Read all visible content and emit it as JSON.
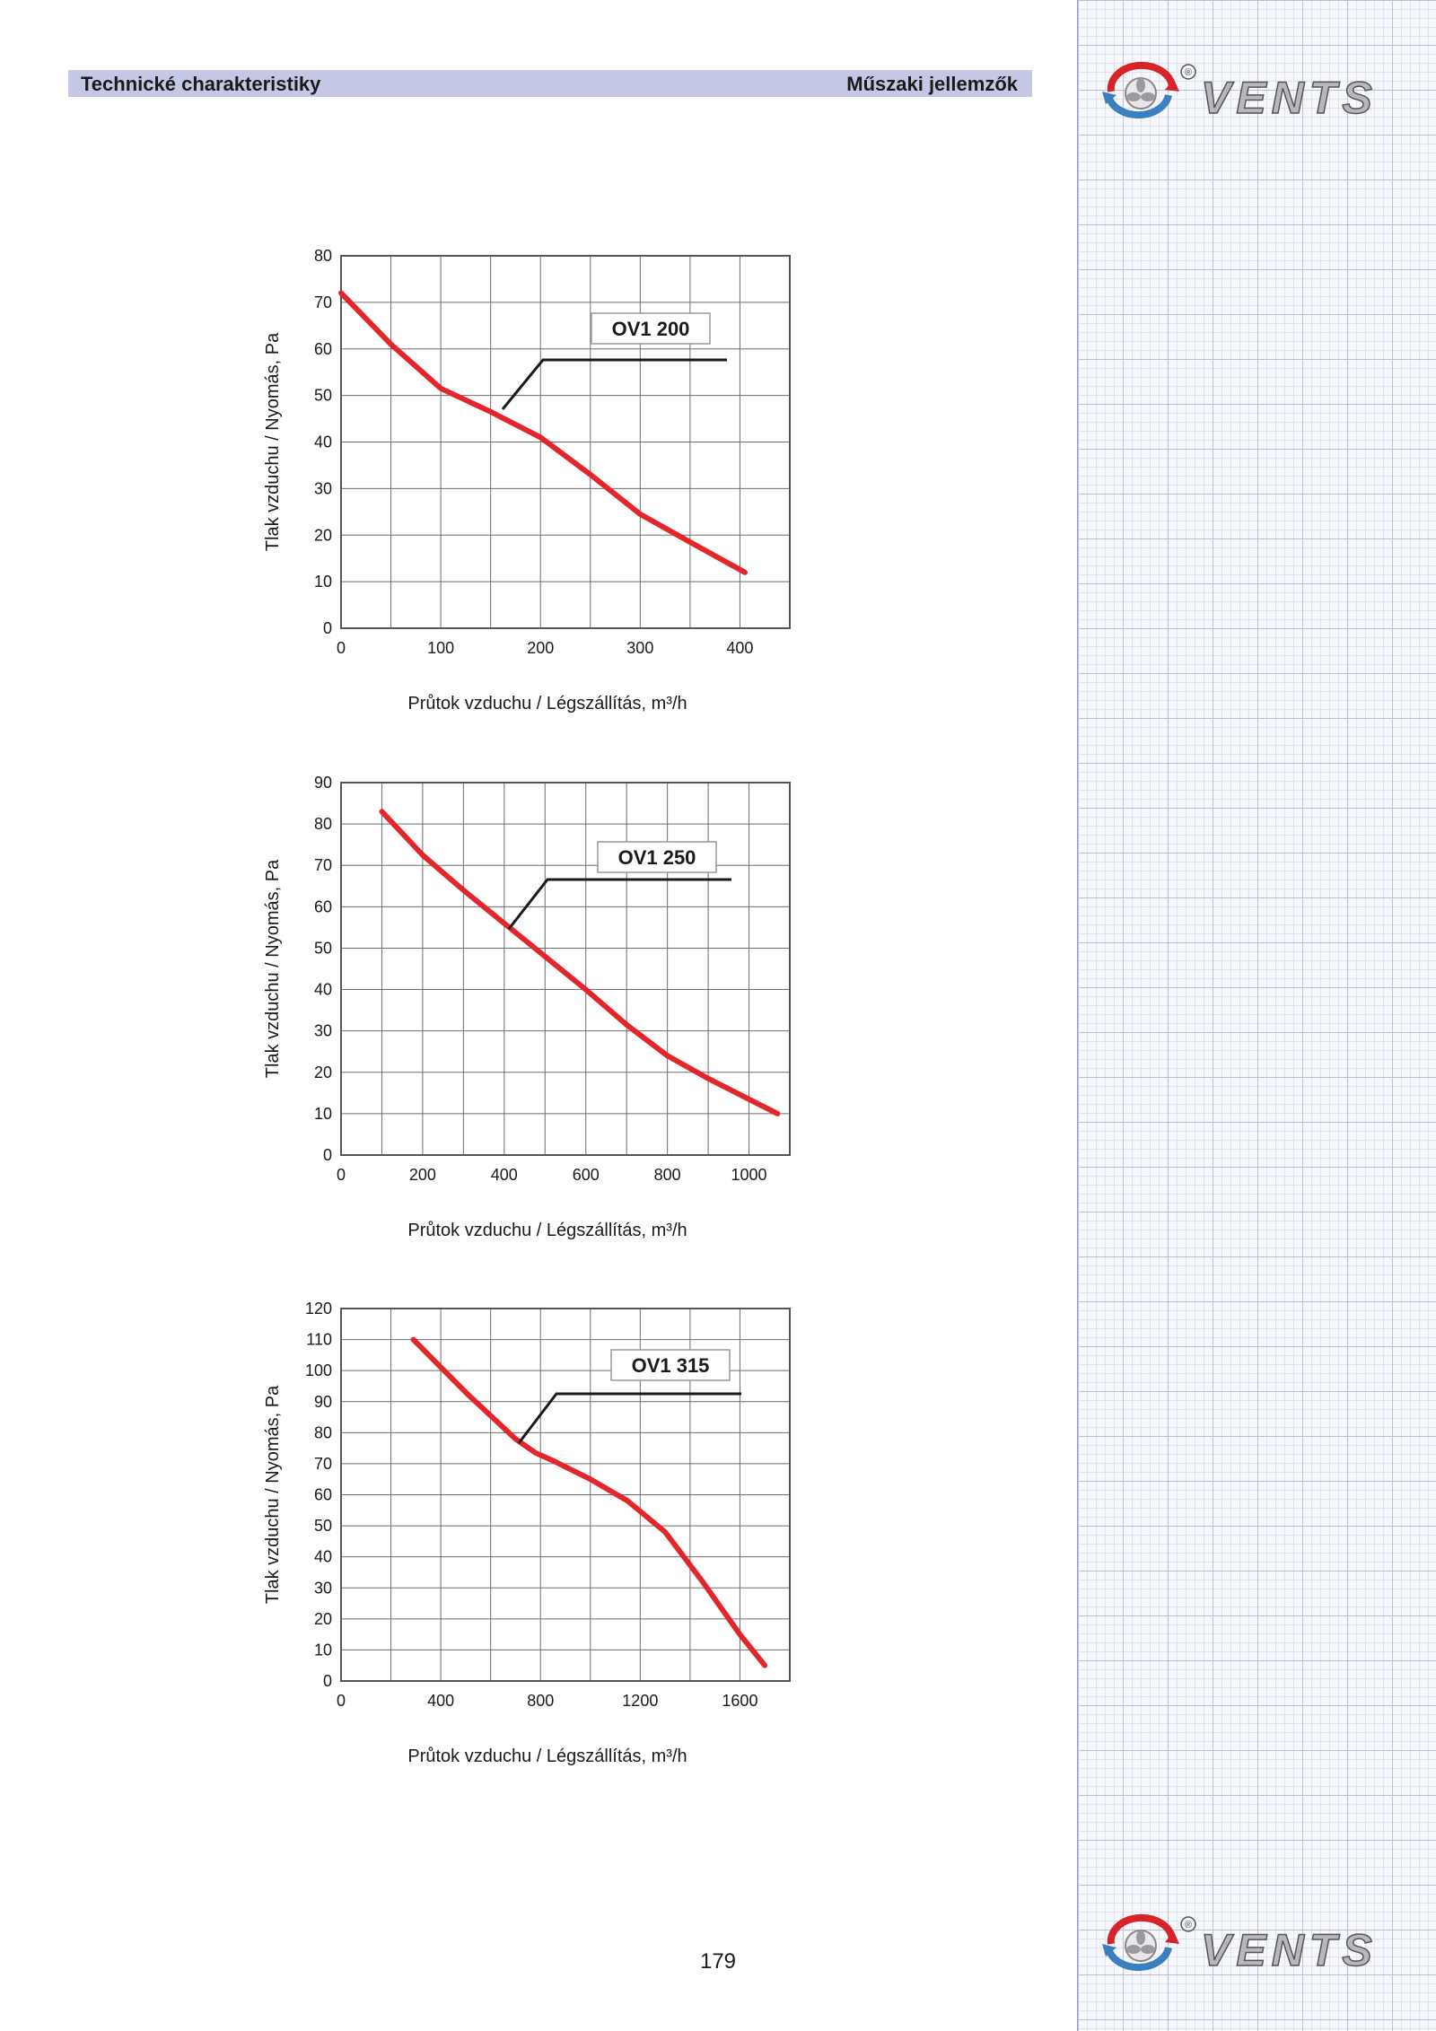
{
  "header": {
    "left_title": "Technické charakteristiky",
    "right_title": "Műszaki jellemzők"
  },
  "brand": {
    "logo_text": "VENTS",
    "registered_mark": "®"
  },
  "colors": {
    "header_band": "#c5c8e4",
    "curve": "#e3262b",
    "grid_panel_line": "#b9bfd9"
  },
  "page_number": "179",
  "chart_data": [
    {
      "type": "line",
      "model_label": "OV1 200",
      "xlabel": "Průtok vzduchu / Légszállítás, m³/h",
      "ylabel": "Tlak vzduchu / Nyomás, Pa",
      "xlim": [
        0,
        450
      ],
      "ylim": [
        0,
        80
      ],
      "x_ticks": [
        0,
        100,
        200,
        300,
        400
      ],
      "y_ticks": [
        0,
        10,
        20,
        30,
        40,
        50,
        60,
        70,
        80
      ],
      "grid": true,
      "series": [
        {
          "x": [
            0,
            50,
            100,
            150,
            200,
            250,
            300,
            350,
            405
          ],
          "y": [
            72,
            61,
            51.5,
            46.5,
            41,
            33,
            24.5,
            18.5,
            12
          ]
        }
      ]
    },
    {
      "type": "line",
      "model_label": "OV1 250",
      "xlabel": "Průtok vzduchu / Légszállítás, m³/h",
      "ylabel": "Tlak vzduchu / Nyomás, Pa",
      "xlim": [
        0,
        1100
      ],
      "ylim": [
        0,
        90
      ],
      "x_ticks": [
        0,
        200,
        400,
        600,
        800,
        1000
      ],
      "y_ticks": [
        0,
        10,
        20,
        30,
        40,
        50,
        60,
        70,
        80,
        90
      ],
      "grid": true,
      "series": [
        {
          "x": [
            100,
            200,
            300,
            400,
            500,
            600,
            700,
            800,
            900,
            1000,
            1070
          ],
          "y": [
            83,
            72.5,
            64,
            56,
            48,
            40,
            31.5,
            24,
            18.5,
            13.5,
            10
          ]
        }
      ]
    },
    {
      "type": "line",
      "model_label": "OV1 315",
      "xlabel": "Průtok vzduchu / Légszállítás, m³/h",
      "ylabel": "Tlak vzduchu / Nyomás, Pa",
      "xlim": [
        0,
        1800
      ],
      "ylim": [
        0,
        120
      ],
      "x_ticks": [
        0,
        400,
        800,
        1200,
        1600
      ],
      "y_ticks": [
        0,
        10,
        20,
        30,
        40,
        50,
        60,
        70,
        80,
        90,
        100,
        110,
        120
      ],
      "grid": true,
      "series": [
        {
          "x": [
            290,
            500,
            700,
            780,
            850,
            1000,
            1150,
            1300,
            1450,
            1600,
            1700
          ],
          "y": [
            110,
            93,
            78,
            73.5,
            71,
            65,
            58,
            48,
            32,
            15,
            5
          ]
        }
      ]
    }
  ]
}
